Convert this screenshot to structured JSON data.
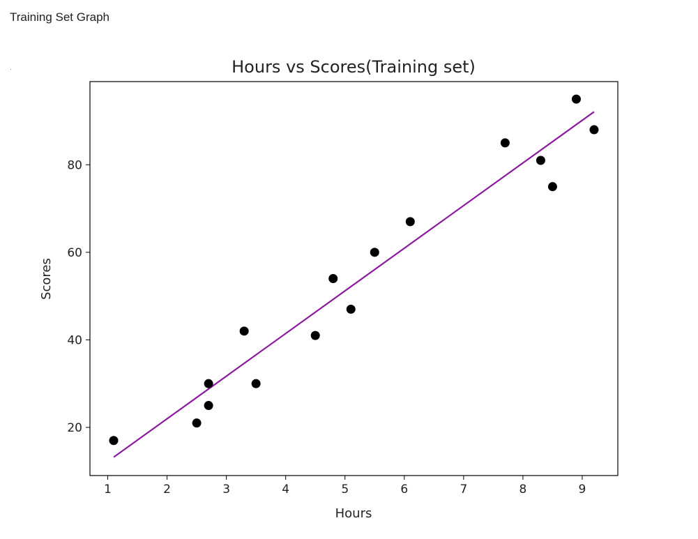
{
  "page": {
    "heading": "Training Set Graph"
  },
  "chart_data": {
    "type": "scatter",
    "title": "Hours vs Scores(Training set)",
    "xlabel": "Hours",
    "ylabel": "Scores",
    "xlim": [
      0.7,
      9.6
    ],
    "ylim": [
      9,
      99
    ],
    "xticks": [
      1,
      2,
      3,
      4,
      5,
      6,
      7,
      8,
      9
    ],
    "yticks": [
      20,
      40,
      60,
      80
    ],
    "grid": false,
    "legend": "none",
    "points_color": "#000000",
    "line_color": "#8b1a9e",
    "points": [
      {
        "x": 1.1,
        "y": 17
      },
      {
        "x": 2.5,
        "y": 21
      },
      {
        "x": 2.7,
        "y": 25
      },
      {
        "x": 2.7,
        "y": 30
      },
      {
        "x": 3.3,
        "y": 42
      },
      {
        "x": 3.5,
        "y": 30
      },
      {
        "x": 4.5,
        "y": 41
      },
      {
        "x": 4.8,
        "y": 54
      },
      {
        "x": 5.1,
        "y": 47
      },
      {
        "x": 5.5,
        "y": 60
      },
      {
        "x": 6.1,
        "y": 67
      },
      {
        "x": 7.7,
        "y": 85
      },
      {
        "x": 8.3,
        "y": 81
      },
      {
        "x": 8.5,
        "y": 75
      },
      {
        "x": 8.9,
        "y": 95
      },
      {
        "x": 9.2,
        "y": 88
      }
    ],
    "regression_line": [
      {
        "x": 1.1,
        "y": 13.2
      },
      {
        "x": 9.2,
        "y": 92.1
      }
    ]
  }
}
